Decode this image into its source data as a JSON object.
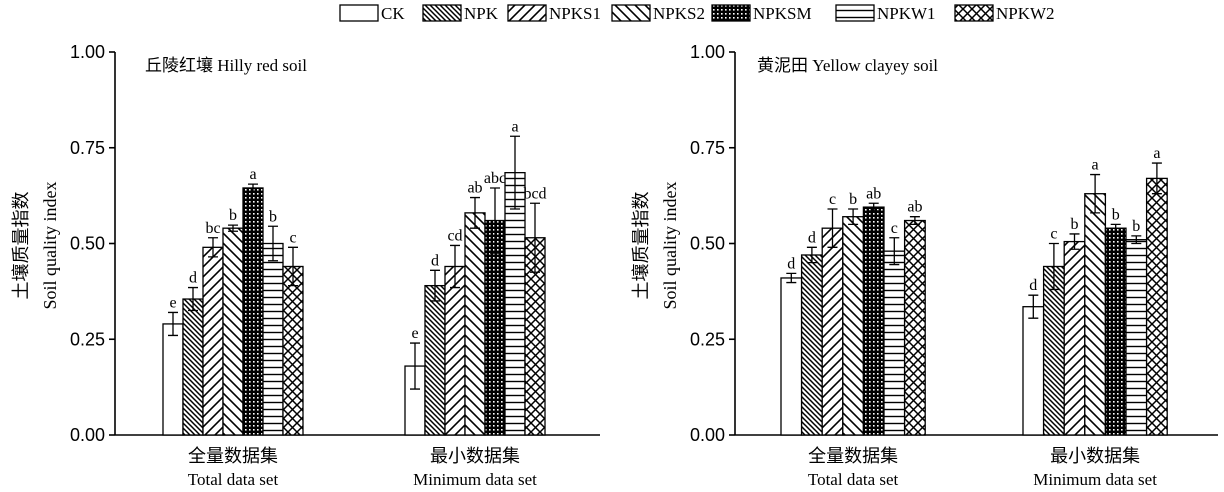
{
  "legend": [
    {
      "label": "CK",
      "pattern": "none"
    },
    {
      "label": "NPK",
      "pattern": "back-hatch"
    },
    {
      "label": "NPKS1",
      "pattern": "fwd-hatch"
    },
    {
      "label": "NPKS2",
      "pattern": "back-wide"
    },
    {
      "label": "NPKSM",
      "pattern": "grid"
    },
    {
      "label": "NPKW1",
      "pattern": "horizontal"
    },
    {
      "label": "NPKW2",
      "pattern": "cross"
    }
  ],
  "chart_data": [
    {
      "type": "bar",
      "title": "丘陵红壤 Hilly red soil",
      "ylabel_cn": "土壤质量指数",
      "ylabel_en": "Soil quality index",
      "ylim": [
        0,
        1.0
      ],
      "yticks": [
        "0.00",
        "0.25",
        "0.50",
        "0.75",
        "1.00"
      ],
      "categories": [
        {
          "cn": "全量数据集",
          "en": "Total data set"
        },
        {
          "cn": "最小数据集",
          "en": "Minimum data set"
        }
      ],
      "series": [
        {
          "name": "CK",
          "values": [
            0.29,
            0.18
          ],
          "errors": [
            0.03,
            0.06
          ],
          "letters": [
            "e",
            "e"
          ]
        },
        {
          "name": "NPK",
          "values": [
            0.355,
            0.39
          ],
          "errors": [
            0.03,
            0.04
          ],
          "letters": [
            "d",
            "d"
          ]
        },
        {
          "name": "NPKS1",
          "values": [
            0.49,
            0.44
          ],
          "errors": [
            0.025,
            0.055
          ],
          "letters": [
            "bc",
            "cd"
          ]
        },
        {
          "name": "NPKS2",
          "values": [
            0.54,
            0.58
          ],
          "errors": [
            0.008,
            0.04
          ],
          "letters": [
            "b",
            "ab"
          ]
        },
        {
          "name": "NPKSM",
          "values": [
            0.645,
            0.56
          ],
          "errors": [
            0.01,
            0.085
          ],
          "letters": [
            "a",
            "abc"
          ]
        },
        {
          "name": "NPKW1",
          "values": [
            0.5,
            0.685
          ],
          "errors": [
            0.045,
            0.095
          ],
          "letters": [
            "b",
            "a"
          ]
        },
        {
          "name": "NPKW2",
          "values": [
            0.44,
            0.515
          ],
          "errors": [
            0.05,
            0.09
          ],
          "letters": [
            "c",
            "bcd"
          ]
        }
      ]
    },
    {
      "type": "bar",
      "title": "黄泥田 Yellow clayey soil",
      "ylabel_cn": "土壤质量指数",
      "ylabel_en": "Soil quality index",
      "ylim": [
        0,
        1.0
      ],
      "yticks": [
        "0.00",
        "0.25",
        "0.50",
        "0.75",
        "1.00"
      ],
      "categories": [
        {
          "cn": "全量数据集",
          "en": "Total data set"
        },
        {
          "cn": "最小数据集",
          "en": "Minimum data set"
        }
      ],
      "series": [
        {
          "name": "CK",
          "values": [
            0.41,
            0.335
          ],
          "errors": [
            0.012,
            0.03
          ],
          "letters": [
            "d",
            "d"
          ]
        },
        {
          "name": "NPK",
          "values": [
            0.47,
            0.44
          ],
          "errors": [
            0.02,
            0.06
          ],
          "letters": [
            "d",
            "c"
          ]
        },
        {
          "name": "NPKS1",
          "values": [
            0.54,
            0.505
          ],
          "errors": [
            0.05,
            0.02
          ],
          "letters": [
            "c",
            "b"
          ]
        },
        {
          "name": "NPKS2",
          "values": [
            0.57,
            0.63
          ],
          "errors": [
            0.02,
            0.05
          ],
          "letters": [
            "b",
            "a"
          ]
        },
        {
          "name": "NPKSM",
          "values": [
            0.595,
            0.54
          ],
          "errors": [
            0.01,
            0.01
          ],
          "letters": [
            "ab",
            "b"
          ]
        },
        {
          "name": "NPKW1",
          "values": [
            0.48,
            0.51
          ],
          "errors": [
            0.035,
            0.01
          ],
          "letters": [
            "c",
            "b"
          ]
        },
        {
          "name": "NPKW2",
          "values": [
            0.56,
            0.67
          ],
          "errors": [
            0.01,
            0.04
          ],
          "letters": [
            "ab",
            "a"
          ]
        }
      ]
    }
  ]
}
